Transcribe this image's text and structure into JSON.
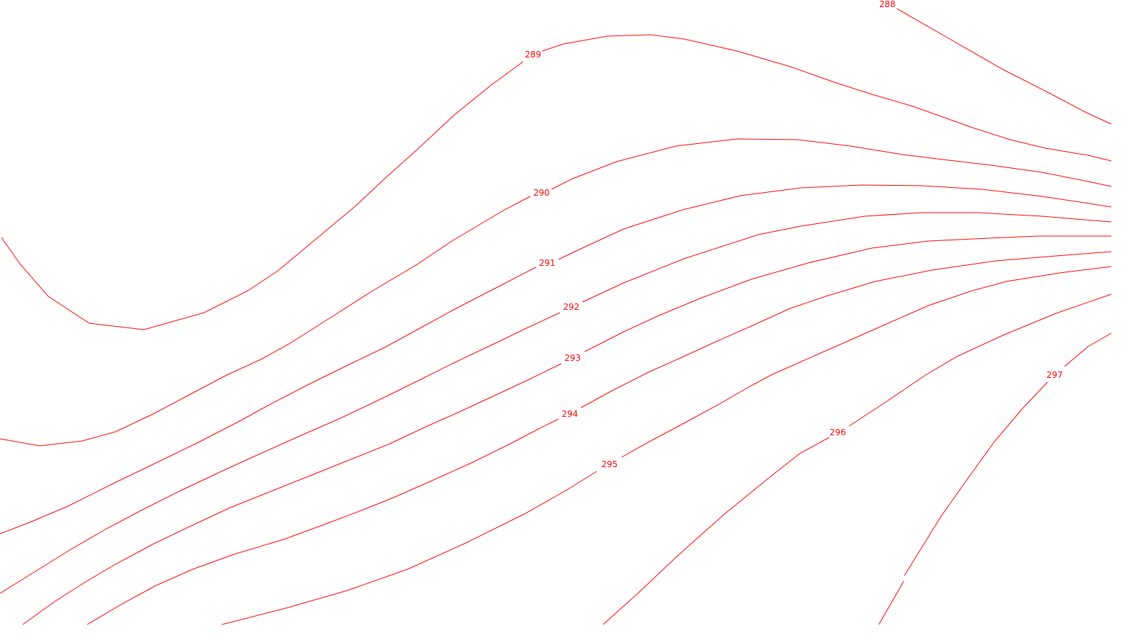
{
  "map": {
    "type": "isoline-contour-map",
    "line_color": "#ff0000",
    "background": "#ffffff",
    "contour_labels": [
      "288",
      "289",
      "290",
      "291",
      "292",
      "293",
      "294",
      "295",
      "296",
      "297"
    ]
  }
}
